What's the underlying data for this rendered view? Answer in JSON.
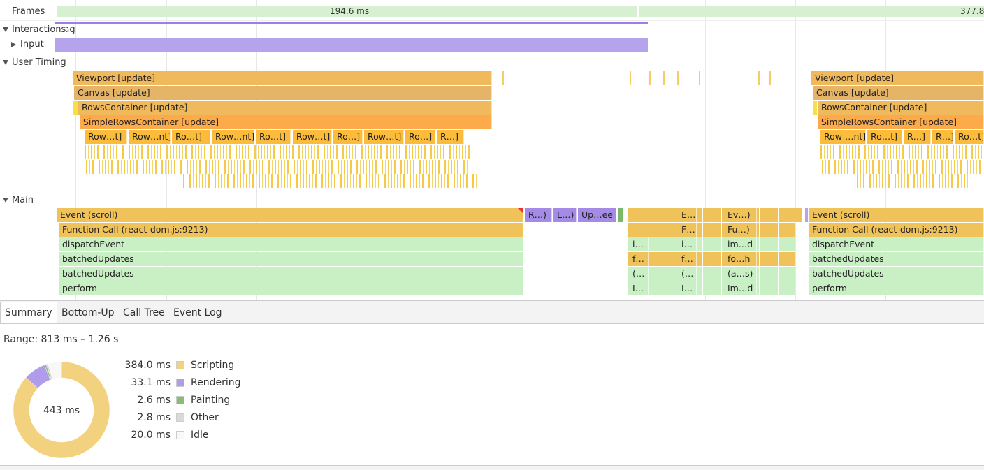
{
  "tracks": {
    "frames": {
      "label": "Frames",
      "items": [
        "194.6 ms",
        "377.8"
      ]
    },
    "interactions": {
      "label": "Interactions",
      "items": [
        "Drag"
      ]
    },
    "input": {
      "label": "Input"
    },
    "user_timing": {
      "label": "User Timing",
      "left": [
        "Viewport [update]",
        "Canvas [update]",
        "RowsContainer [update]",
        "SimpleRowsContainer [update]",
        "Row…t]",
        "Row…nt]",
        "Ro…t]",
        "Row…nt]",
        "Ro…t]",
        "Row…t]",
        "Ro…]",
        "Row…t]",
        "Ro…]",
        "R…]"
      ],
      "right": [
        "Viewport [update]",
        "Canvas [update]",
        "RowsContainer [update]",
        "SimpleRowsContainer [update]",
        "Row …nt]",
        "Ro…t]",
        "R…]",
        "R…]",
        "Ro…t]"
      ]
    },
    "main": {
      "label": "Main",
      "left": [
        "Event (scroll)",
        "Function Call (react-dom.js:9213)",
        "dispatchEvent",
        "batchedUpdates",
        "batchedUpdates",
        "perform"
      ],
      "purple": [
        "R…)",
        "L…)",
        "Up…ee"
      ],
      "col1": [
        "i…",
        "f…",
        "(…",
        "I…"
      ],
      "col2": [
        "E…",
        "F…",
        "i…",
        "f…",
        "(…",
        "I…"
      ],
      "col3": [
        "Ev…)",
        "Fu…)",
        "im…d",
        "fo…h",
        "(a…s)",
        "Im…d"
      ],
      "right": [
        "Event (scroll)",
        "Function Call (react-dom.js:9213)",
        "dispatchEvent",
        "batchedUpdates",
        "batchedUpdates",
        "perform"
      ]
    }
  },
  "tabs": [
    "Summary",
    "Bottom-Up",
    "Call Tree",
    "Event Log"
  ],
  "summary": {
    "range": "Range: 813 ms – 1.26 s",
    "total": "443 ms",
    "items": [
      {
        "value": 384.0,
        "label": "384.0 ms",
        "name": "Scripting",
        "color": "#f2d27f"
      },
      {
        "value": 33.1,
        "label": "33.1 ms",
        "name": "Rendering",
        "color": "#af9ceb"
      },
      {
        "value": 2.6,
        "label": "2.6 ms",
        "name": "Painting",
        "color": "#89bc76"
      },
      {
        "value": 2.8,
        "label": "2.8 ms",
        "name": "Other",
        "color": "#d9d9d9"
      },
      {
        "value": 20.0,
        "label": "20.0 ms",
        "name": "Idle",
        "color": "#f8f8f8"
      }
    ]
  }
}
